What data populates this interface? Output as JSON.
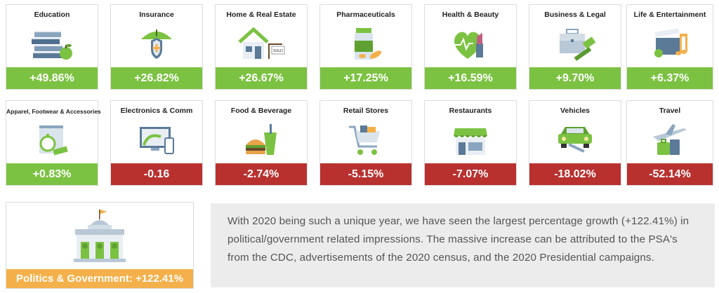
{
  "row1": [
    {
      "label": "Education",
      "value": "+49.86%",
      "status": "positive",
      "icon": "books-apple-icon"
    },
    {
      "label": "Insurance",
      "value": "+26.82%",
      "status": "positive",
      "icon": "umbrella-shield-icon"
    },
    {
      "label": "Home & Real Estate",
      "value": "+26.67%",
      "status": "positive",
      "icon": "house-sold-sign-icon"
    },
    {
      "label": "Pharmaceuticals",
      "value": "+17.25%",
      "status": "positive",
      "icon": "pill-bottle-icon"
    },
    {
      "label": "Health & Beauty",
      "value": "+16.59%",
      "status": "positive",
      "icon": "heart-lipstick-icon"
    },
    {
      "label": "Business & Legal",
      "value": "+9.70%",
      "status": "positive",
      "icon": "briefcase-gavel-icon"
    },
    {
      "label": "Life & Entertainment",
      "value": "+6.37%",
      "status": "positive",
      "icon": "clapperboard-music-icon"
    }
  ],
  "row2": [
    {
      "label": "Apparel, Footwear & Accessories",
      "value": "+0.83%",
      "status": "positive",
      "icon": "clothing-watch-icon"
    },
    {
      "label": "Electronics & Comm",
      "value": "-0.16",
      "status": "negative",
      "icon": "monitor-phone-icon"
    },
    {
      "label": "Food & Beverage",
      "value": "-2.74%",
      "status": "negative",
      "icon": "burger-drink-icon"
    },
    {
      "label": "Retail Stores",
      "value": "-5.15%",
      "status": "negative",
      "icon": "shopping-cart-icon"
    },
    {
      "label": "Restaurants",
      "value": "-7.07%",
      "status": "negative",
      "icon": "storefront-icon"
    },
    {
      "label": "Vehicles",
      "value": "-18.02%",
      "status": "negative",
      "icon": "car-wrench-icon"
    },
    {
      "label": "Travel",
      "value": "-52.14%",
      "status": "negative",
      "icon": "plane-luggage-icon"
    }
  ],
  "politics": {
    "label": "Politics & Government: +122.41%",
    "icon": "government-building-icon"
  },
  "description": "With 2020 being such a unique year, we have seen the largest percentage growth (+122.41%) in political/government related impressions. The massive increase can be attributed to the PSA's from the CDC, advertisements of the 2020 census, and the 2020 Presidential campaigns.",
  "colors": {
    "positive": "#7cc242",
    "negative": "#b8312f",
    "politics": "#f4b04a",
    "description_bg": "#ececec"
  }
}
